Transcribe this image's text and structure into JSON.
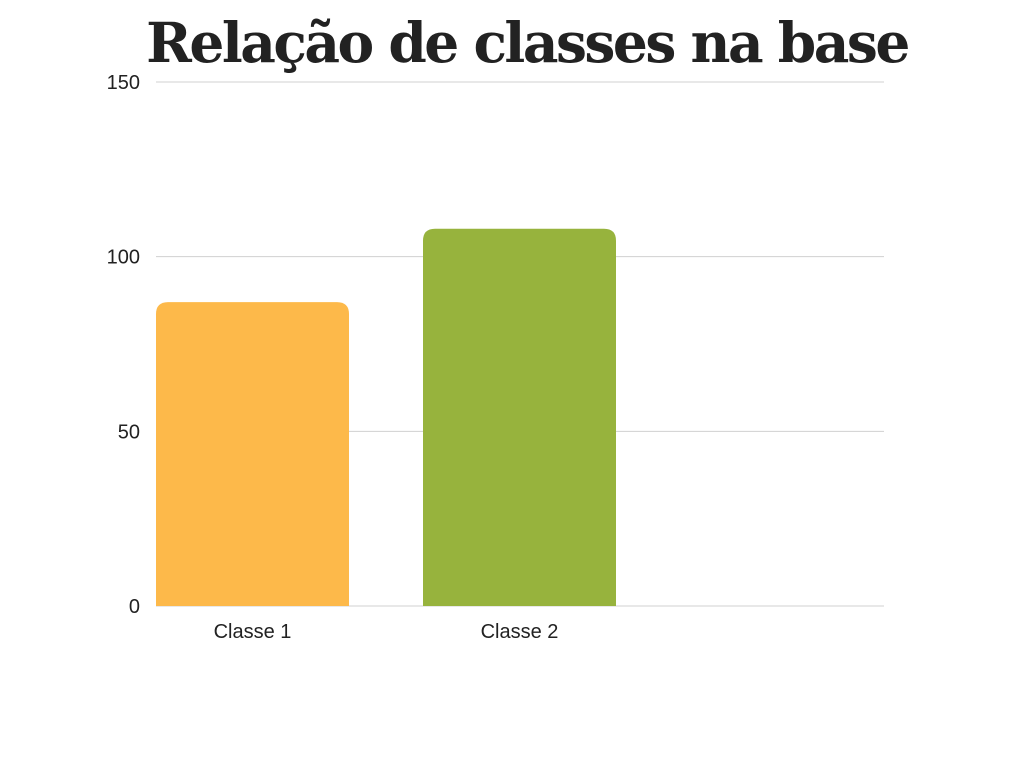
{
  "chart_data": {
    "type": "bar",
    "title": "Relação de classes na base",
    "xlabel": "",
    "ylabel": "",
    "categories": [
      "Classe 1",
      "Classe 2"
    ],
    "values": [
      87,
      108
    ],
    "bar_colors": [
      "#FDB94A",
      "#97B33D"
    ],
    "ylim": [
      0,
      150
    ],
    "yticks": [
      0,
      50,
      100,
      150
    ],
    "grid": true,
    "gridline_color": "#d0d0d0",
    "legend": "none"
  }
}
